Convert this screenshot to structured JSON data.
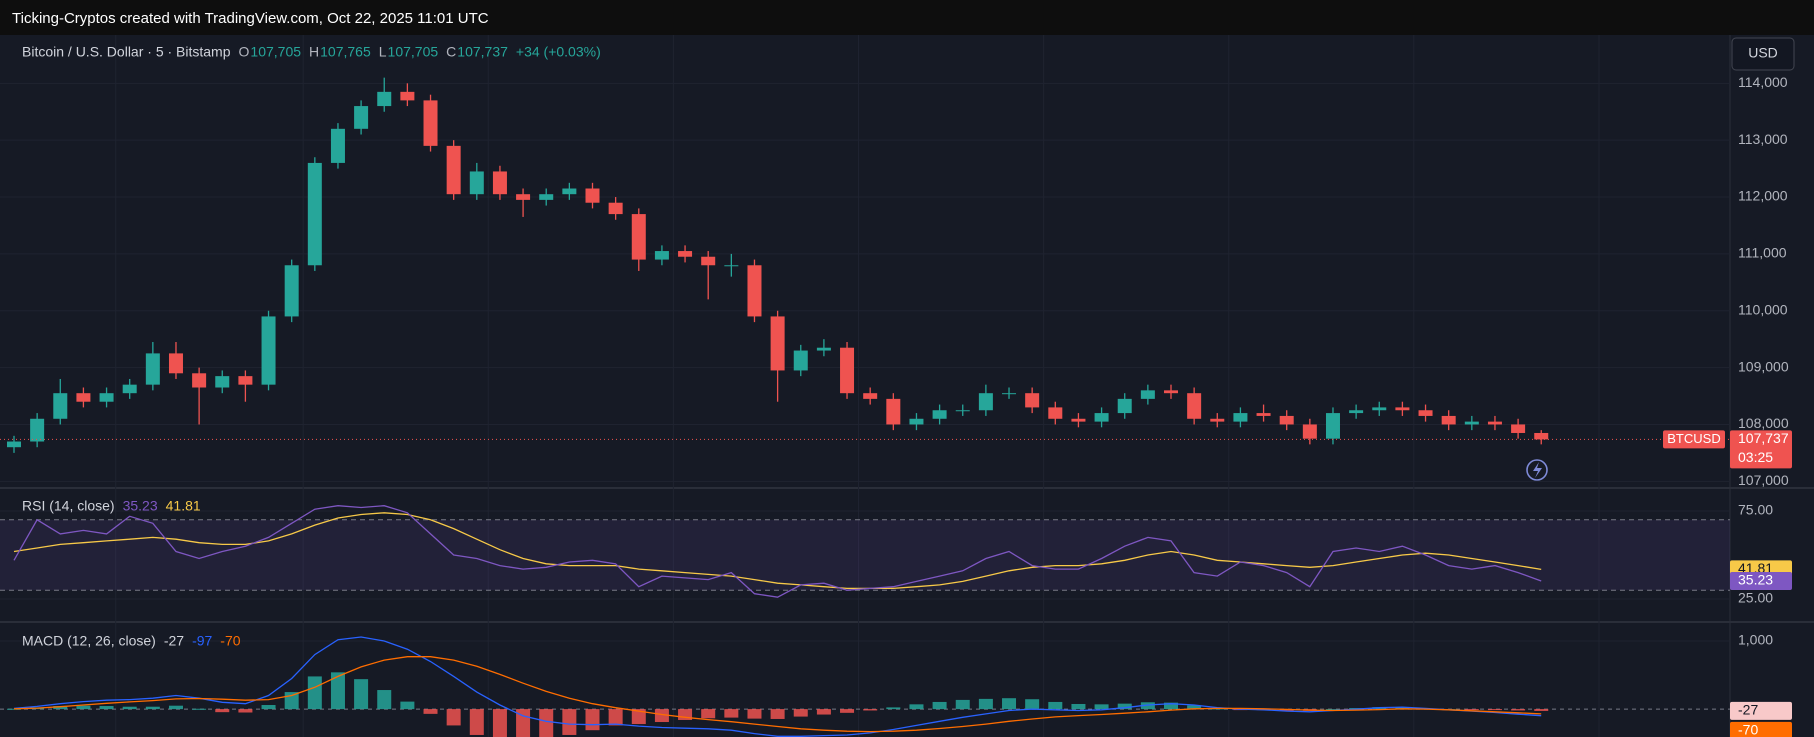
{
  "header": {
    "text": "Ticking-Cryptos created with TradingView.com, Oct 22, 2025 11:01 UTC"
  },
  "chart_data": [
    {
      "type": "candlestick",
      "title": "Bitcoin / U.S. Dollar · 5 · Bitstamp",
      "ohlc": [
        {
          "key": "O",
          "text": "107,705"
        },
        {
          "key": "H",
          "text": "107,765"
        },
        {
          "key": "L",
          "text": "107,705"
        },
        {
          "key": "C",
          "text": "107,737"
        }
      ],
      "change": "+34 (+0.03%)",
      "open": [
        107600,
        107700,
        108100,
        108550,
        108400,
        108550,
        108700,
        109250,
        108900,
        108650,
        108850,
        108700,
        109900,
        110800,
        112600,
        113200,
        113600,
        113850,
        113700,
        112900,
        112050,
        112450,
        112050,
        111950,
        112050,
        112150,
        111900,
        111700,
        110900,
        111050,
        110950,
        110800,
        110800,
        109900,
        108950,
        109300,
        109350,
        108550,
        108450,
        108000,
        108100,
        108250,
        108250,
        108550,
        108550,
        108300,
        108100,
        108050,
        108200,
        108450,
        108600,
        108550,
        108100,
        108050,
        108200,
        108150,
        108000,
        107750,
        108200,
        108250,
        108300,
        108250,
        108150,
        108000,
        108050,
        108000,
        107850
      ],
      "high": [
        107800,
        108200,
        108800,
        108650,
        108650,
        108800,
        109450,
        109450,
        109000,
        108950,
        108950,
        110000,
        110900,
        112700,
        113300,
        113700,
        114100,
        114000,
        113800,
        113000,
        112600,
        112550,
        112150,
        112150,
        112250,
        112250,
        112000,
        111800,
        111150,
        111150,
        111050,
        111000,
        110900,
        110000,
        109400,
        109500,
        109450,
        108650,
        108550,
        108200,
        108350,
        108350,
        108700,
        108650,
        108650,
        108400,
        108200,
        108300,
        108550,
        108700,
        108700,
        108650,
        108200,
        108300,
        108350,
        108250,
        108100,
        108300,
        108350,
        108400,
        108400,
        108350,
        108250,
        108150,
        108150,
        108100,
        107900
      ],
      "low": [
        107500,
        107600,
        108000,
        108300,
        108300,
        108450,
        108600,
        108800,
        108000,
        108550,
        108400,
        108600,
        109800,
        110700,
        112500,
        113100,
        113500,
        113600,
        112800,
        111950,
        111950,
        111950,
        111650,
        111850,
        111950,
        111800,
        111600,
        110700,
        110800,
        110850,
        110200,
        110600,
        109800,
        108400,
        108850,
        109200,
        108450,
        108350,
        107900,
        107900,
        108000,
        108150,
        108150,
        108450,
        108200,
        108000,
        107950,
        107950,
        108100,
        108350,
        108450,
        108000,
        107950,
        107950,
        108050,
        107900,
        107650,
        107650,
        108100,
        108150,
        108150,
        108050,
        107900,
        107900,
        107900,
        107750,
        107650
      ],
      "close": [
        107700,
        108100,
        108550,
        108400,
        108550,
        108700,
        109250,
        108900,
        108650,
        108850,
        108700,
        109900,
        110800,
        112600,
        113200,
        113600,
        113850,
        113700,
        112900,
        112050,
        112450,
        112050,
        111950,
        112050,
        112150,
        111900,
        111700,
        110900,
        111050,
        110950,
        110800,
        110800,
        109900,
        108950,
        109300,
        109350,
        108550,
        108450,
        108000,
        108100,
        108250,
        108250,
        108550,
        108550,
        108300,
        108100,
        108050,
        108200,
        108450,
        108600,
        108550,
        108100,
        108050,
        108200,
        108150,
        108000,
        107750,
        108200,
        108250,
        108300,
        108250,
        108150,
        108000,
        108050,
        108000,
        107850,
        107737
      ],
      "up_color": "#26a69a",
      "down_color": "#ef5350",
      "ylim": [
        106900,
        114850
      ],
      "yticks": [
        {
          "value": 107000,
          "label": "107,000"
        },
        {
          "value": 108000,
          "label": "108,000"
        },
        {
          "value": 109000,
          "label": "109,000"
        },
        {
          "value": 110000,
          "label": "110,000"
        },
        {
          "value": 111000,
          "label": "111,000"
        },
        {
          "value": 112000,
          "label": "112,000"
        },
        {
          "value": 113000,
          "label": "113,000"
        },
        {
          "value": 114000,
          "label": "114,000"
        }
      ],
      "grid": true,
      "currency": "USD",
      "last_tag": {
        "symbol": "BTCUSD",
        "price": "107,737",
        "countdown": "03:25"
      }
    },
    {
      "type": "line",
      "title": "RSI (14, close)",
      "series": [
        {
          "color": "#7e57c2",
          "values": [
            47,
            70,
            62,
            64,
            62,
            72,
            68,
            52,
            48,
            52,
            55,
            60,
            68,
            76,
            78,
            77,
            78,
            74,
            62,
            50,
            48,
            44,
            42,
            43,
            46,
            47,
            45,
            32,
            38,
            37,
            36,
            40,
            28,
            26,
            33,
            34,
            30,
            31,
            32,
            35,
            38,
            41,
            48,
            52,
            44,
            42,
            42,
            48,
            55,
            60,
            58,
            40,
            38,
            46,
            44,
            40,
            32,
            52,
            54,
            52,
            55,
            50,
            44,
            42,
            44,
            40,
            35.23
          ]
        },
        {
          "color": "#f7c948",
          "values": [
            52,
            54,
            56,
            57,
            58,
            59,
            60,
            59,
            57,
            56,
            56,
            58,
            62,
            67,
            71,
            73,
            74,
            73,
            70,
            65,
            59,
            53,
            48,
            45,
            44,
            44,
            44,
            42,
            41,
            40,
            39,
            38,
            36,
            34,
            33,
            32,
            31,
            31,
            31,
            32,
            33,
            35,
            38,
            41,
            43,
            44,
            44,
            45,
            47,
            50,
            52,
            50,
            47,
            46,
            45,
            44,
            43,
            44,
            46,
            48,
            50,
            51,
            50,
            48,
            46,
            44,
            41.81
          ]
        }
      ],
      "ylim": [
        12.5,
        87.5
      ],
      "yticks": [
        {
          "value": 75,
          "label": "75.00"
        },
        {
          "value": 25,
          "label": "25.00"
        }
      ],
      "bands": [
        70,
        30
      ],
      "band_color": "#7e57c2"
    },
    {
      "type": "macd",
      "title": "MACD (12, 26, close)",
      "histogram": {
        "values": [
          5,
          25,
          45,
          50,
          45,
          35,
          35,
          50,
          5,
          -45,
          -50,
          60,
          250,
          480,
          540,
          440,
          280,
          110,
          -70,
          -240,
          -380,
          -450,
          -480,
          -440,
          -380,
          -310,
          -240,
          -220,
          -190,
          -160,
          -135,
          -125,
          -140,
          -145,
          -110,
          -80,
          -55,
          -20,
          25,
          70,
          105,
          135,
          150,
          160,
          145,
          105,
          75,
          70,
          80,
          100,
          95,
          55,
          10,
          -10,
          -15,
          -25,
          -25,
          0,
          15,
          28,
          25,
          10,
          0,
          -5,
          -10,
          -20,
          -27
        ],
        "up_color": "#26a69a",
        "down_color": "#ef5350"
      },
      "series": [
        {
          "color": "#2962ff",
          "values": [
            10,
            40,
            80,
            110,
            130,
            140,
            160,
            200,
            160,
            100,
            80,
            200,
            450,
            800,
            1020,
            1060,
            1000,
            880,
            700,
            480,
            250,
            60,
            -100,
            -180,
            -220,
            -230,
            -220,
            -250,
            -270,
            -280,
            -290,
            -310,
            -360,
            -400,
            -400,
            -390,
            -380,
            -350,
            -300,
            -240,
            -180,
            -120,
            -70,
            -20,
            0,
            -10,
            -20,
            -10,
            20,
            60,
            80,
            60,
            20,
            0,
            -10,
            -30,
            -40,
            -20,
            0,
            20,
            30,
            10,
            -10,
            -30,
            -50,
            -75,
            -97
          ]
        },
        {
          "color": "#ff6d00",
          "values": [
            5,
            15,
            35,
            60,
            85,
            105,
            125,
            150,
            155,
            145,
            130,
            140,
            200,
            320,
            480,
            620,
            720,
            770,
            770,
            720,
            630,
            510,
            380,
            260,
            160,
            80,
            20,
            -30,
            -80,
            -120,
            -155,
            -185,
            -220,
            -255,
            -290,
            -310,
            -325,
            -330,
            -325,
            -310,
            -285,
            -255,
            -220,
            -180,
            -145,
            -115,
            -95,
            -80,
            -60,
            -40,
            -15,
            5,
            10,
            10,
            5,
            -5,
            -15,
            -20,
            -15,
            -8,
            5,
            0,
            -10,
            -25,
            -40,
            -55,
            -70
          ]
        }
      ],
      "ylim": [
        -410,
        1265
      ],
      "yticks": [
        {
          "value": 1000,
          "label": "1,000"
        }
      ],
      "zero_line": 0
    }
  ]
}
